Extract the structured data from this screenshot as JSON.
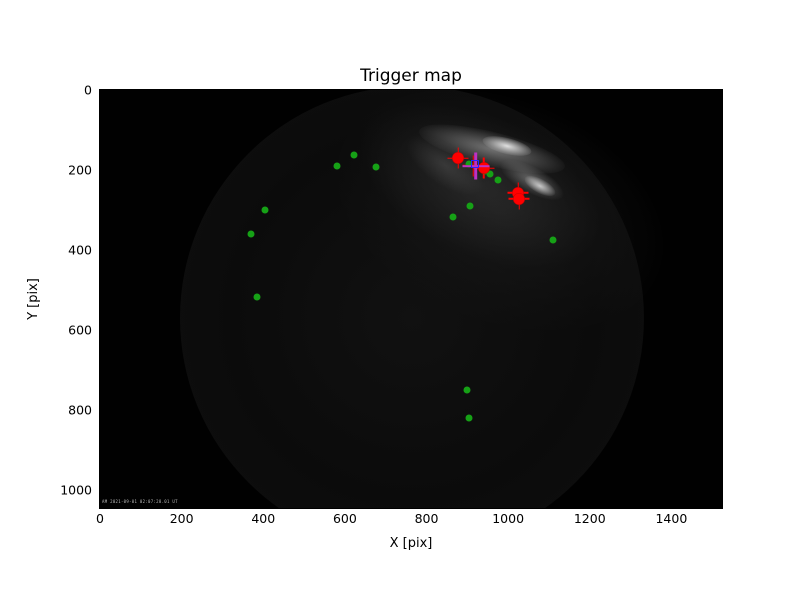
{
  "figure": {
    "watermark": "AM 2021-09-01 02:07:28.01 UT"
  },
  "colors": {
    "trigger_green": "#16a116",
    "detection_red": "#ff0000",
    "cross_magenta": "#bf30c4",
    "square_blue": "#2525ff",
    "plot_background": "#010101",
    "page_background": "#ffffff"
  },
  "chart_data": {
    "type": "scatter",
    "title": "Trigger map",
    "xlabel": "X [pix]",
    "ylabel": "Y [pix]",
    "xlim": [
      0,
      1524
    ],
    "ylim": [
      1045,
      0
    ],
    "y_axis_inverted": true,
    "grid": false,
    "legend": "none",
    "background": "grayscale all-sky fisheye camera frame with bright cloud streak near top of field",
    "xticks": [
      0,
      200,
      400,
      600,
      800,
      1000,
      1200,
      1400
    ],
    "yticks": [
      0,
      200,
      400,
      600,
      800,
      1000
    ],
    "series": [
      {
        "name": "red-plus-markers",
        "marker": "plus",
        "color": "#ff0000",
        "size": 21,
        "thickness": 1.5,
        "points": [
          [
            878,
            171
          ],
          [
            915,
            189
          ],
          [
            940,
            195
          ],
          [
            1025,
            257
          ],
          [
            1027,
            272
          ]
        ]
      },
      {
        "name": "green-dots",
        "marker": "dot",
        "color": "#16a116",
        "size": 7,
        "points": [
          [
            580,
            190
          ],
          [
            622,
            163
          ],
          [
            676,
            193
          ],
          [
            405,
            300
          ],
          [
            371,
            361
          ],
          [
            385,
            517
          ],
          [
            903,
            184
          ],
          [
            944,
            202
          ],
          [
            956,
            209
          ],
          [
            976,
            226
          ],
          [
            906,
            289
          ],
          [
            866,
            318
          ],
          [
            1110,
            375
          ],
          [
            898,
            751
          ],
          [
            905,
            821
          ]
        ]
      },
      {
        "name": "red-circles",
        "marker": "circle",
        "color": "#ff0000",
        "size": 11,
        "points": [
          [
            878,
            171
          ],
          [
            940,
            195
          ],
          [
            1025,
            257
          ],
          [
            1027,
            272
          ]
        ]
      },
      {
        "name": "magenta-cross",
        "marker": "plus",
        "color": "#bf30c4",
        "size": 27,
        "thickness": 2.6,
        "points": [
          [
            921,
            191
          ]
        ]
      },
      {
        "name": "blue-square",
        "marker": "square",
        "color": "#2525ff",
        "size": 8,
        "points": [
          [
            918,
            186
          ]
        ]
      }
    ]
  }
}
